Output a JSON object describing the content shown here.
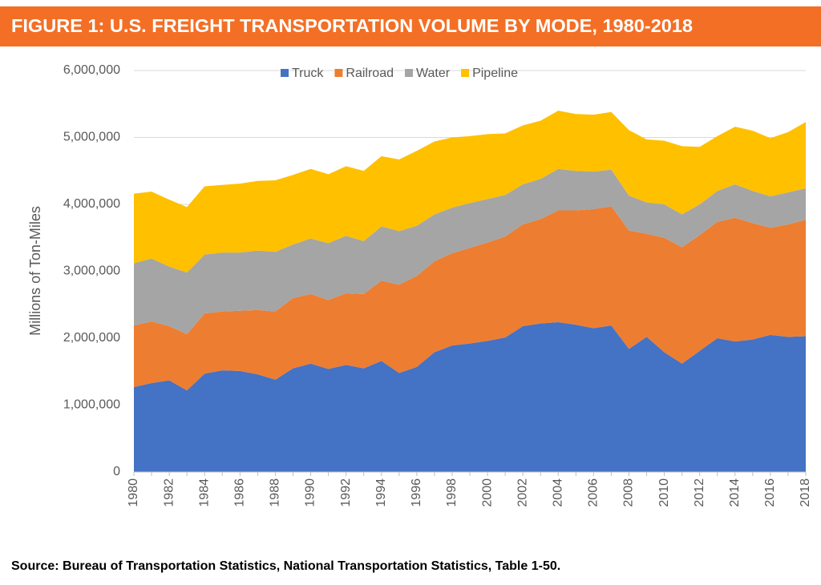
{
  "header": {
    "title": "FIGURE 1: U.S. FREIGHT TRANSPORTATION VOLUME BY MODE, 1980-2018"
  },
  "chart_data": {
    "type": "stacked_area",
    "y_label": "Millions of Ton-Miles",
    "x": [
      1980,
      1981,
      1982,
      1983,
      1984,
      1985,
      1986,
      1987,
      1988,
      1989,
      1990,
      1991,
      1992,
      1993,
      1994,
      1995,
      1996,
      1997,
      1998,
      1999,
      2000,
      2001,
      2002,
      2003,
      2004,
      2005,
      2006,
      2007,
      2008,
      2009,
      2010,
      2011,
      2012,
      2013,
      2014,
      2015,
      2016,
      2017,
      2018
    ],
    "xlim": [
      1980,
      2018
    ],
    "xticks": [
      1980,
      1982,
      1984,
      1986,
      1988,
      1990,
      1992,
      1994,
      1996,
      1998,
      2000,
      2002,
      2004,
      2006,
      2008,
      2010,
      2012,
      2014,
      2016,
      2018
    ],
    "ylim": [
      0,
      6000000
    ],
    "yticks": [
      0,
      {
        "value": 1000000,
        "label": "1,000,000"
      },
      {
        "value": 2000000,
        "label": "2,000,000"
      },
      {
        "value": 3000000,
        "label": "3,000,000"
      },
      {
        "value": 4000000,
        "label": "4,000,000"
      },
      {
        "value": 5000000,
        "label": "5,000,000"
      },
      {
        "value": 6000000,
        "label": "6,000,000"
      }
    ],
    "grid": true,
    "legend": "top",
    "series": [
      {
        "name": "Truck",
        "color": "#4472c4",
        "values": [
          1270000,
          1330000,
          1370000,
          1220000,
          1470000,
          1520000,
          1510000,
          1460000,
          1380000,
          1550000,
          1620000,
          1540000,
          1600000,
          1550000,
          1660000,
          1480000,
          1570000,
          1790000,
          1890000,
          1920000,
          1960000,
          2010000,
          2180000,
          2220000,
          2240000,
          2200000,
          2150000,
          2190000,
          1840000,
          2020000,
          1790000,
          1620000,
          1810000,
          2000000,
          1950000,
          1980000,
          2050000,
          2020000,
          2030000
        ]
      },
      {
        "name": "Railroad",
        "color": "#ed7d31",
        "values": [
          920000,
          920000,
          810000,
          840000,
          900000,
          880000,
          900000,
          960000,
          1020000,
          1050000,
          1040000,
          1030000,
          1070000,
          1110000,
          1200000,
          1320000,
          1360000,
          1360000,
          1380000,
          1430000,
          1470000,
          1510000,
          1520000,
          1560000,
          1670000,
          1710000,
          1780000,
          1780000,
          1770000,
          1540000,
          1710000,
          1740000,
          1730000,
          1740000,
          1850000,
          1740000,
          1600000,
          1680000,
          1740000
        ]
      },
      {
        "name": "Water",
        "color": "#a5a5a5",
        "values": [
          930000,
          940000,
          890000,
          920000,
          880000,
          880000,
          870000,
          890000,
          890000,
          800000,
          830000,
          850000,
          860000,
          790000,
          810000,
          800000,
          750000,
          700000,
          680000,
          670000,
          650000,
          620000,
          600000,
          600000,
          620000,
          590000,
          560000,
          550000,
          520000,
          470000,
          500000,
          490000,
          460000,
          460000,
          500000,
          480000,
          470000,
          480000,
          470000
        ]
      },
      {
        "name": "Pipeline",
        "color": "#ffc000",
        "values": [
          1040000,
          1000000,
          1000000,
          980000,
          1020000,
          1010000,
          1030000,
          1040000,
          1070000,
          1040000,
          1040000,
          1030000,
          1040000,
          1050000,
          1050000,
          1070000,
          1120000,
          1090000,
          1050000,
          1000000,
          970000,
          920000,
          880000,
          870000,
          870000,
          850000,
          850000,
          860000,
          980000,
          940000,
          950000,
          1020000,
          860000,
          820000,
          860000,
          900000,
          870000,
          900000,
          990000
        ]
      }
    ]
  },
  "source": "Source: Bureau of Transportation Statistics, National Transportation Statistics, Table 1-50."
}
